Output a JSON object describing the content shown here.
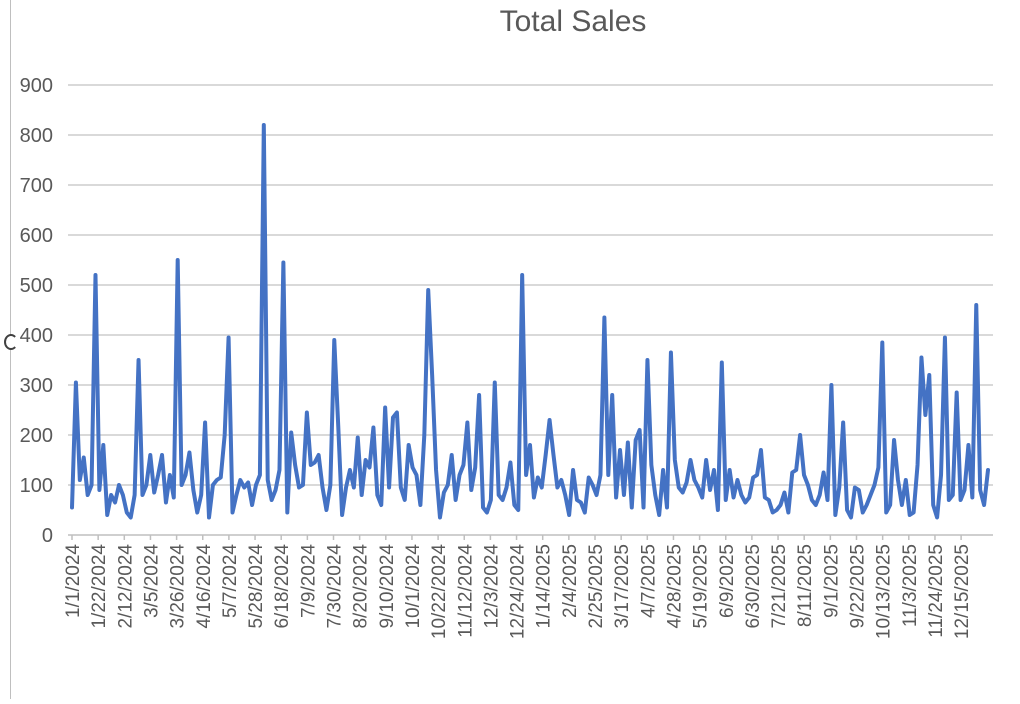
{
  "chart_data": {
    "type": "line",
    "title": "Total Sales",
    "xlabel": "",
    "ylabel": "",
    "ylim": [
      0,
      900
    ],
    "yticks": [
      0,
      100,
      200,
      300,
      400,
      500,
      600,
      700,
      800,
      900
    ],
    "grid": true,
    "legend": "none",
    "colors": {
      "series": "#4472c4",
      "grid": "#d9d9d9",
      "text": "#595959"
    },
    "tick_labels": [
      "1/1/2024",
      "1/22/2024",
      "2/12/2024",
      "3/5/2024",
      "3/26/2024",
      "4/16/2024",
      "5/7/2024",
      "5/28/2024",
      "6/18/2024",
      "7/9/2024",
      "7/30/2024",
      "8/20/2024",
      "9/10/2024",
      "10/1/2024",
      "10/22/2024",
      "11/12/2024",
      "12/3/2024",
      "12/24/2024",
      "1/14/2025",
      "2/4/2025",
      "2/25/2025",
      "3/17/2025",
      "4/7/2025",
      "4/28/2025",
      "5/19/2025",
      "6/9/2025",
      "6/30/2025",
      "7/21/2025",
      "8/11/2025",
      "9/1/2025",
      "9/22/2025",
      "10/13/2025",
      "11/3/2025",
      "11/24/2025",
      "12/15/2025"
    ],
    "tick_step_weeks": 3,
    "x_start": "1/1/2024",
    "interval": "weekly-ish points (approx. 2 per week)",
    "series": [
      {
        "name": "Total Sales",
        "values": [
          55,
          305,
          110,
          155,
          80,
          100,
          520,
          90,
          180,
          40,
          80,
          65,
          100,
          80,
          45,
          35,
          80,
          350,
          80,
          100,
          160,
          85,
          120,
          160,
          65,
          120,
          75,
          550,
          100,
          120,
          165,
          90,
          45,
          80,
          225,
          35,
          100,
          110,
          115,
          200,
          395,
          45,
          80,
          110,
          95,
          105,
          60,
          100,
          120,
          820,
          110,
          70,
          90,
          130,
          545,
          45,
          205,
          140,
          95,
          100,
          245,
          140,
          145,
          160,
          95,
          50,
          100,
          390,
          220,
          40,
          95,
          130,
          95,
          195,
          80,
          150,
          135,
          215,
          80,
          60,
          255,
          95,
          235,
          245,
          95,
          70,
          180,
          135,
          120,
          60,
          200,
          490,
          320,
          130,
          35,
          85,
          100,
          160,
          70,
          120,
          140,
          225,
          90,
          135,
          280,
          55,
          45,
          70,
          305,
          80,
          70,
          95,
          145,
          60,
          50,
          520,
          120,
          180,
          75,
          115,
          95,
          160,
          230,
          160,
          95,
          110,
          80,
          40,
          130,
          70,
          65,
          45,
          115,
          100,
          80,
          120,
          435,
          120,
          280,
          75,
          170,
          80,
          185,
          55,
          190,
          210,
          55,
          350,
          140,
          80,
          40,
          130,
          55,
          365,
          150,
          95,
          85,
          105,
          150,
          110,
          95,
          75,
          150,
          90,
          130,
          50,
          345,
          70,
          130,
          75,
          110,
          80,
          65,
          75,
          115,
          120,
          170,
          75,
          70,
          45,
          50,
          60,
          85,
          45,
          125,
          130,
          200,
          120,
          100,
          70,
          60,
          80,
          125,
          70,
          300,
          40,
          95,
          225,
          50,
          35,
          95,
          90,
          45,
          60,
          80,
          100,
          135,
          385,
          45,
          60,
          190,
          110,
          60,
          110,
          40,
          45,
          140,
          355,
          240,
          320,
          60,
          35,
          120,
          395,
          70,
          80,
          285,
          70,
          90,
          180,
          75,
          460,
          90,
          60,
          130
        ]
      }
    ]
  }
}
